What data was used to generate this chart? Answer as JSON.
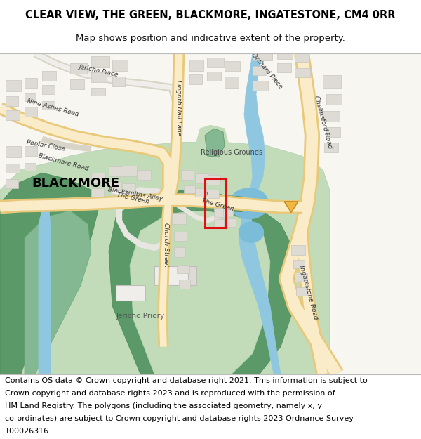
{
  "title_line1": "CLEAR VIEW, THE GREEN, BLACKMORE, INGATESTONE, CM4 0RR",
  "title_line2": "Map shows position and indicative extent of the property.",
  "footer_text": "Contains OS data © Crown copyright and database right 2021. This information is subject to Crown copyright and database rights 2023 and is reproduced with the permission of HM Land Registry. The polygons (including the associated geometry, namely x, y co-ordinates) are subject to Crown copyright and database rights 2023 Ordnance Survey 100026316.",
  "bg_color": "#ffffff",
  "map_bg": "#f8f6f0",
  "road_yellow_fill": "#faecc8",
  "road_yellow_edge": "#e8c97a",
  "road_white": "#ffffff",
  "road_gray_edge": "#d0cfc0",
  "building_fill": "#dddbd4",
  "building_stroke": "#c8c6bf",
  "green_dark": "#5c9968",
  "green_mid": "#84b892",
  "green_pale": "#c2dcba",
  "blue_river": "#8fc7e0",
  "blue_pond": "#7bbcd8",
  "red_plot": "#dd1111",
  "orange_triangle": "#f0b840",
  "title_fontsize": 10.5,
  "subtitle_fontsize": 9.5,
  "footer_fontsize": 8.0,
  "label_fontsize": 7.5,
  "blackmore_fontsize": 13
}
